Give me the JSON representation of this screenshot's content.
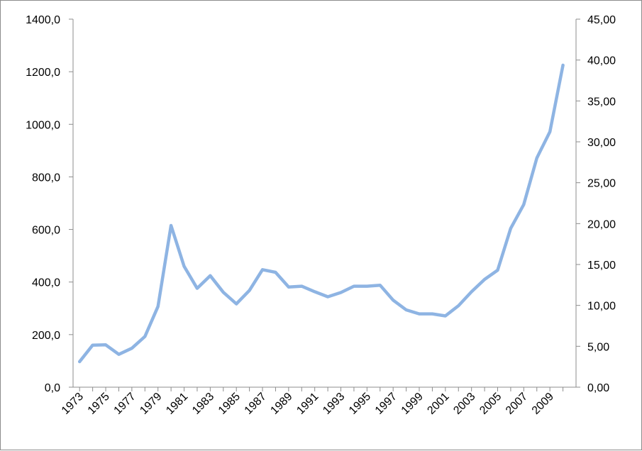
{
  "chart_data": {
    "type": "line",
    "title": "",
    "xlabel": "",
    "ylabel": "",
    "y2label": "",
    "grid": false,
    "legend": "none",
    "x": [
      1973,
      1974,
      1975,
      1976,
      1977,
      1978,
      1979,
      1980,
      1981,
      1982,
      1983,
      1984,
      1985,
      1986,
      1987,
      1988,
      1989,
      1990,
      1991,
      1992,
      1993,
      1994,
      1995,
      1996,
      1997,
      1998,
      1999,
      2000,
      2001,
      2002,
      2003,
      2004,
      2005,
      2006,
      2007,
      2008,
      2009,
      2010
    ],
    "x_tick_labels": [
      "1973",
      "1975",
      "1977",
      "1979",
      "1981",
      "1983",
      "1985",
      "1987",
      "1989",
      "1991",
      "1993",
      "1995",
      "1997",
      "1999",
      "2001",
      "2003",
      "2005",
      "2007",
      "2009"
    ],
    "ylim": [
      0,
      1400
    ],
    "y_tick_labels": [
      "0,0",
      "200,0",
      "400,0",
      "600,0",
      "800,0",
      "1000,0",
      "1200,0",
      "1400,0"
    ],
    "y2lim": [
      0,
      45
    ],
    "y2_tick_labels": [
      "0,00",
      "5,00",
      "10,00",
      "15,00",
      "20,00",
      "25,00",
      "30,00",
      "35,00",
      "40,00",
      "45,00"
    ],
    "series": [
      {
        "color": "#8EB4E3",
        "axis": "left",
        "values": [
          97,
          160,
          161,
          125,
          148,
          193,
          307,
          615,
          460,
          376,
          424,
          361,
          317,
          368,
          447,
          437,
          381,
          384,
          363,
          344,
          360,
          384,
          384,
          388,
          331,
          294,
          279,
          279,
          271,
          310,
          363,
          410,
          445,
          604,
          695,
          872,
          972,
          1225
        ]
      }
    ]
  }
}
